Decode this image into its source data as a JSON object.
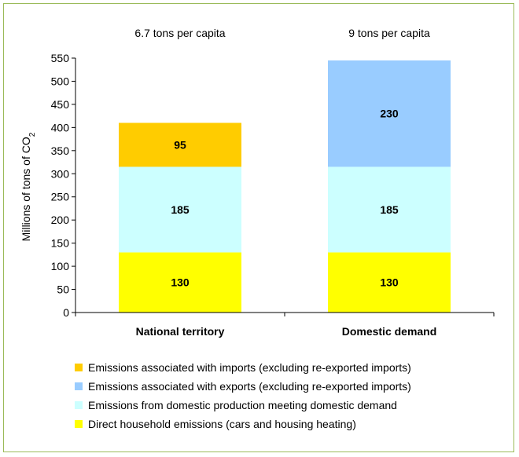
{
  "chart_data": {
    "type": "bar",
    "stacked": true,
    "categories": [
      "National territory",
      "Domestic demand"
    ],
    "series": [
      {
        "name": "Direct household emissions (cars and housing heating)",
        "values": [
          130,
          130
        ],
        "color": "#ffff00"
      },
      {
        "name": "Emissions from domestic production meeting domestic demand",
        "values": [
          185,
          185
        ],
        "color": "#ccffff"
      },
      {
        "name": "Emissions associated with imports (excluding re-exported imports)",
        "values": [
          95,
          null
        ],
        "color": "#ffcc00"
      },
      {
        "name": "Emissions associated with exports (excluding re-exported imports)",
        "values": [
          null,
          230
        ],
        "color": "#99ccff"
      }
    ],
    "annotations": [
      "6.7 tons per capita",
      "9 tons per capita"
    ],
    "ylabel_main": "Millions of tons of CO",
    "ylabel_sub": "2",
    "ylim": [
      0,
      550
    ],
    "yticks": [
      0,
      50,
      100,
      150,
      200,
      250,
      300,
      350,
      400,
      450,
      500,
      550
    ],
    "grid": false,
    "legend_position": "bottom",
    "legend_order": [
      "Emissions associated with imports (excluding re-exported imports)",
      "Emissions associated with exports (excluding re-exported imports)",
      "Emissions from domestic production meeting domestic demand",
      "Direct household emissions (cars and housing heating)"
    ]
  }
}
